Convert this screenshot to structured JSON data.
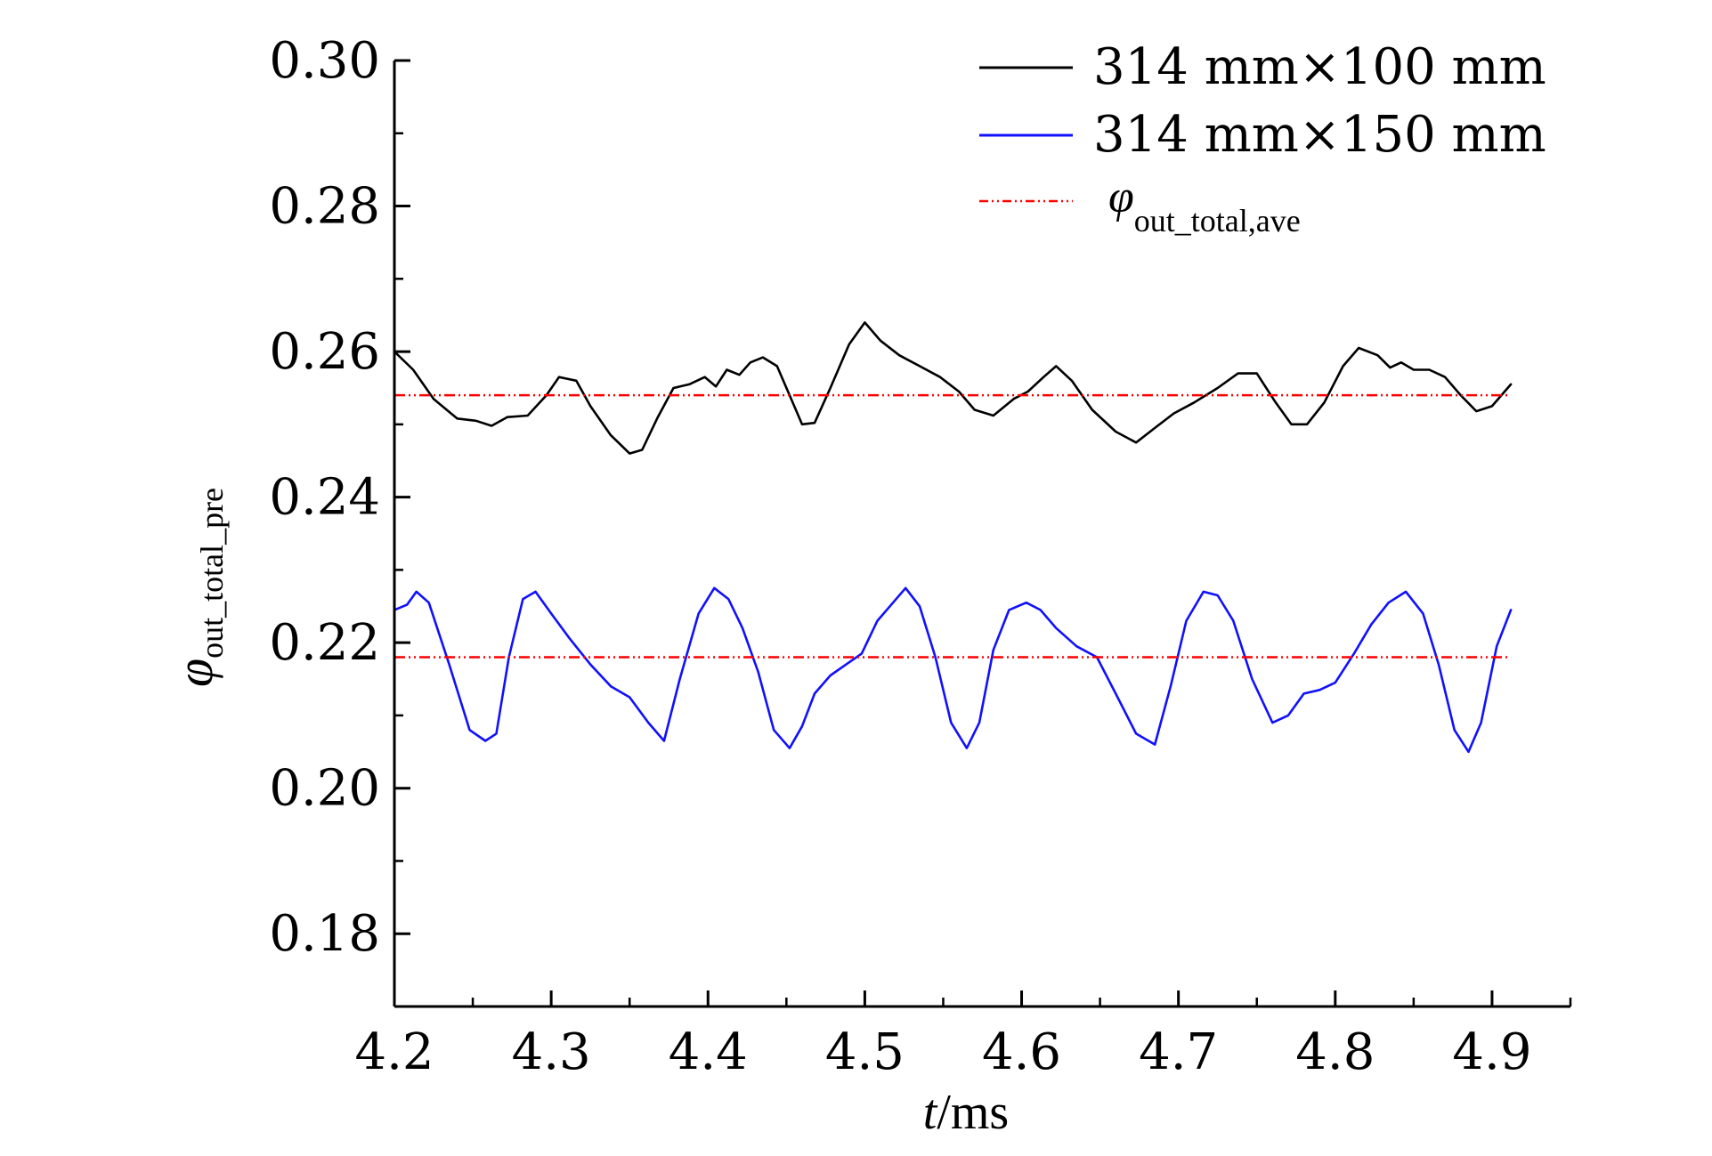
{
  "chart_data": {
    "type": "line",
    "xlabel": {
      "italic": "t",
      "rest": "/ms"
    },
    "ylabel": {
      "symbol": "φ",
      "subscript": "out_total_pre"
    },
    "xlim": [
      4.2,
      4.95
    ],
    "ylim": [
      0.17,
      0.3
    ],
    "x_ticks": [
      "4.2",
      "4.3",
      "4.4",
      "4.5",
      "4.6",
      "4.7",
      "4.8",
      "4.9"
    ],
    "y_ticks": [
      "0.30",
      "0.28",
      "0.26",
      "0.24",
      "0.22",
      "0.20",
      "0.18"
    ],
    "legend_position": "top-right",
    "series": [
      {
        "name": "314 mm×100 mm",
        "color": "#000000",
        "style": "solid",
        "x": [
          4.2,
          4.212,
          4.225,
          4.24,
          4.252,
          4.262,
          4.272,
          4.285,
          4.297,
          4.305,
          4.316,
          4.325,
          4.338,
          4.35,
          4.358,
          4.368,
          4.378,
          4.388,
          4.398,
          4.405,
          4.412,
          4.42,
          4.427,
          4.435,
          4.444,
          4.452,
          4.46,
          4.468,
          4.478,
          4.49,
          4.5,
          4.51,
          4.522,
          4.535,
          4.548,
          4.56,
          4.57,
          4.582,
          4.595,
          4.604,
          4.614,
          4.622,
          4.632,
          4.645,
          4.66,
          4.673,
          4.685,
          4.697,
          4.71,
          4.725,
          4.738,
          4.75,
          4.762,
          4.772,
          4.782,
          4.793,
          4.805,
          4.815,
          4.827,
          4.835,
          4.842,
          4.85,
          4.86,
          4.87,
          4.88,
          4.89,
          4.9,
          4.912
        ],
        "y": [
          0.26,
          0.2575,
          0.2535,
          0.2508,
          0.2505,
          0.2498,
          0.251,
          0.2512,
          0.254,
          0.2565,
          0.256,
          0.2525,
          0.2485,
          0.246,
          0.2465,
          0.251,
          0.255,
          0.2555,
          0.2565,
          0.2552,
          0.2575,
          0.2568,
          0.2585,
          0.2592,
          0.258,
          0.254,
          0.25,
          0.2502,
          0.255,
          0.261,
          0.264,
          0.2615,
          0.2595,
          0.258,
          0.2565,
          0.2545,
          0.252,
          0.2512,
          0.2535,
          0.2545,
          0.2565,
          0.258,
          0.256,
          0.252,
          0.249,
          0.2475,
          0.2495,
          0.2515,
          0.253,
          0.255,
          0.257,
          0.257,
          0.253,
          0.25,
          0.25,
          0.253,
          0.258,
          0.2605,
          0.2595,
          0.2578,
          0.2585,
          0.2575,
          0.2575,
          0.2565,
          0.254,
          0.2518,
          0.2525,
          0.2555
        ]
      },
      {
        "name": "314 mm×150 mm",
        "color": "#1010ff",
        "style": "solid",
        "x": [
          4.2,
          4.208,
          4.214,
          4.222,
          4.235,
          4.248,
          4.258,
          4.265,
          4.273,
          4.282,
          4.29,
          4.3,
          4.312,
          4.325,
          4.338,
          4.35,
          4.362,
          4.372,
          4.382,
          4.394,
          4.404,
          4.413,
          4.422,
          4.432,
          4.442,
          4.452,
          4.46,
          4.468,
          4.478,
          4.488,
          4.498,
          4.508,
          4.518,
          4.526,
          4.535,
          4.545,
          4.555,
          4.565,
          4.573,
          4.582,
          4.592,
          4.603,
          4.612,
          4.622,
          4.635,
          4.648,
          4.66,
          4.673,
          4.685,
          4.695,
          4.705,
          4.716,
          4.725,
          4.735,
          4.747,
          4.76,
          4.77,
          4.78,
          4.79,
          4.8,
          4.812,
          4.823,
          4.834,
          4.845,
          4.856,
          4.866,
          4.876,
          4.885,
          4.893,
          4.903,
          4.912
        ],
        "y": [
          0.2245,
          0.2252,
          0.227,
          0.2255,
          0.217,
          0.208,
          0.2065,
          0.2075,
          0.218,
          0.226,
          0.227,
          0.224,
          0.2205,
          0.217,
          0.214,
          0.2125,
          0.209,
          0.2065,
          0.215,
          0.224,
          0.2275,
          0.226,
          0.222,
          0.216,
          0.208,
          0.2055,
          0.2085,
          0.213,
          0.2155,
          0.217,
          0.2185,
          0.223,
          0.2255,
          0.2275,
          0.225,
          0.218,
          0.209,
          0.2055,
          0.209,
          0.219,
          0.2245,
          0.2255,
          0.2245,
          0.222,
          0.2195,
          0.218,
          0.213,
          0.2075,
          0.206,
          0.214,
          0.223,
          0.227,
          0.2265,
          0.223,
          0.215,
          0.209,
          0.21,
          0.213,
          0.2135,
          0.2145,
          0.2185,
          0.2225,
          0.2255,
          0.227,
          0.224,
          0.217,
          0.208,
          0.205,
          0.209,
          0.2195,
          0.2245
        ]
      },
      {
        "name": "φout_total,ave",
        "legend_symbol": "φ",
        "legend_subscript": "out_total,ave",
        "color": "#ff0000",
        "style": "dash-dot",
        "segments": [
          {
            "x": [
              4.2,
              4.912
            ],
            "y": [
              0.254,
              0.254
            ]
          },
          {
            "x": [
              4.2,
              4.912
            ],
            "y": [
              0.218,
              0.218
            ]
          }
        ]
      }
    ]
  }
}
